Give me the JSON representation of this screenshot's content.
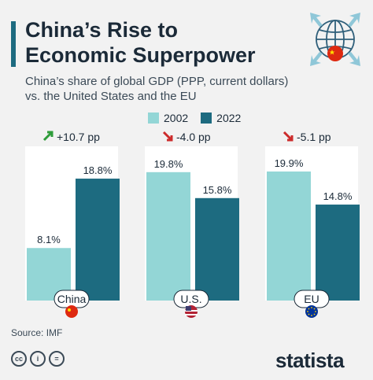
{
  "header": {
    "title_line1": "China’s Rise to",
    "title_line2": "Economic Superpower",
    "subtitle_line1": "China’s share of global GDP (PPP, current dollars)",
    "subtitle_line2": "vs. the United States and the EU"
  },
  "footer": {
    "source": "Source: IMF",
    "brand": "statista"
  },
  "colors": {
    "series_2002": "#93d6d6",
    "series_2022": "#1d6b80",
    "up_arrow": "#2e9c3a",
    "down_arrow": "#cc2b2b"
  },
  "chart_data": {
    "type": "bar",
    "categories": [
      "China",
      "U.S.",
      "EU"
    ],
    "series": [
      {
        "name": "2002",
        "values": [
          8.1,
          19.8,
          19.9
        ]
      },
      {
        "name": "2022",
        "values": [
          18.8,
          15.8,
          14.8
        ]
      }
    ],
    "value_labels": {
      "2002": [
        "8.1%",
        "19.8%",
        "19.9%"
      ],
      "2022": [
        "18.8%",
        "15.8%",
        "14.8%"
      ]
    },
    "changes": [
      "+10.7 pp",
      "-4.0 pp",
      "-5.1 pp"
    ],
    "change_direction": [
      "up",
      "down",
      "down"
    ],
    "flag_icons": [
      "china-flag-icon",
      "us-flag-icon",
      "eu-flag-icon"
    ],
    "ylim": [
      0,
      22
    ],
    "legend_position": "top",
    "grid": false
  }
}
